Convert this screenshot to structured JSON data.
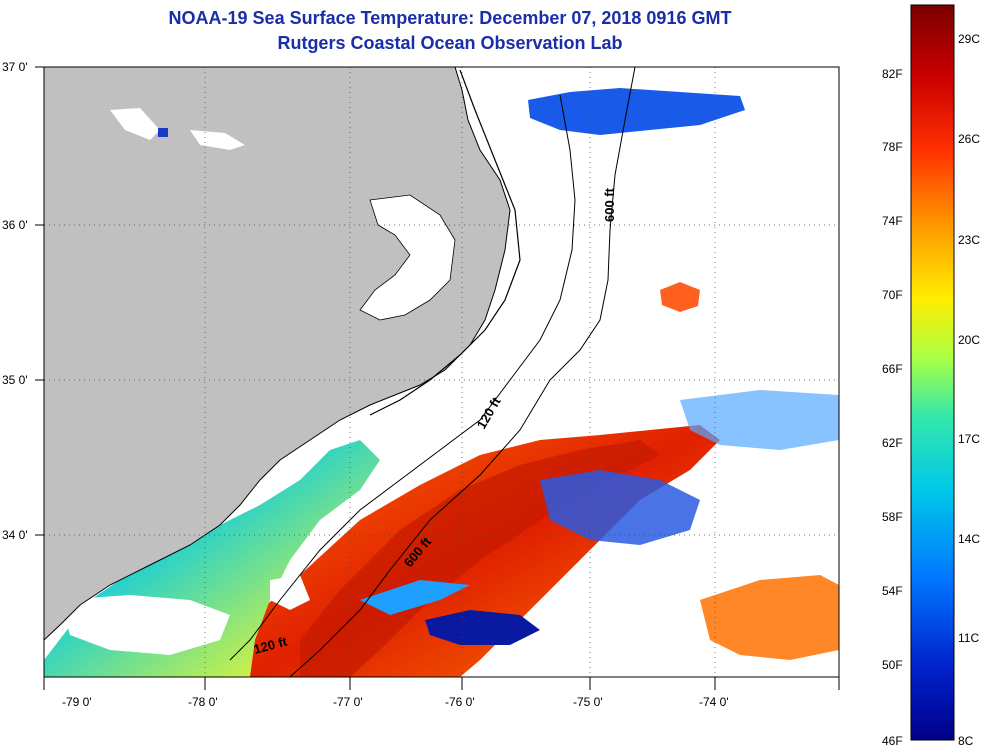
{
  "header": {
    "title": "NOAA-19 Sea Surface Temperature:  December 07, 2018 0916 GMT",
    "subtitle": "Rutgers Coastal Ocean Observation Lab"
  },
  "axes": {
    "lat_labels": [
      "37 0'",
      "36 0'",
      "35 0'",
      "34 0'"
    ],
    "lon_labels": [
      "-79 0'",
      "-78 0'",
      "-77 0'",
      "-76 0'",
      "-75 0'",
      "-74 0'"
    ]
  },
  "contours": {
    "label_600_north": "600 ft",
    "label_120_mid": "120 ft",
    "label_600_south": "600 ft",
    "label_120_south": "120 ft"
  },
  "colorbar": {
    "fahrenheit": [
      "82F",
      "78F",
      "74F",
      "70F",
      "66F",
      "62F",
      "58F",
      "54F",
      "50F",
      "46F"
    ],
    "celsius": [
      "29C",
      "26C",
      "23C",
      "20C",
      "17C",
      "14C",
      "11C",
      "8C"
    ],
    "colors": [
      "#7a0000",
      "#cc0000",
      "#ff3300",
      "#ff8800",
      "#ffcc00",
      "#ccff33",
      "#66ff99",
      "#00e5e5",
      "#0099ff",
      "#0033cc",
      "#000088"
    ]
  },
  "colors": {
    "land": "#c0c0c0",
    "no_data": "#ffffff",
    "title_text": "#1a2ea8"
  }
}
